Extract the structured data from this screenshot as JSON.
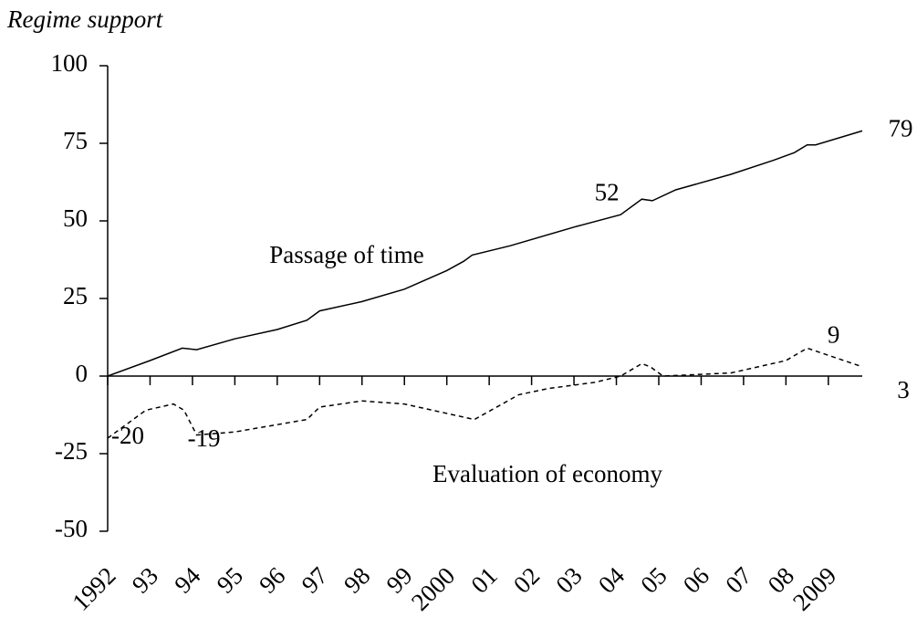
{
  "chart_data": {
    "type": "line",
    "y_label": "Regime support",
    "xlim": [
      1992,
      2009.8
    ],
    "ylim": [
      -50,
      100
    ],
    "yticks": [
      -50,
      -25,
      0,
      25,
      50,
      75,
      100
    ],
    "xticks": [
      1992,
      {
        "value": 1993,
        "label": "93"
      },
      {
        "value": 1994,
        "label": "94"
      },
      {
        "value": 1995,
        "label": "95"
      },
      {
        "value": 1996,
        "label": "96"
      },
      {
        "value": 1997,
        "label": "97"
      },
      {
        "value": 1998,
        "label": "98"
      },
      {
        "value": 1999,
        "label": "99"
      },
      2000,
      {
        "value": 2001,
        "label": "01"
      },
      {
        "value": 2002,
        "label": "02"
      },
      {
        "value": 2003,
        "label": "03"
      },
      {
        "value": 2004,
        "label": "04"
      },
      {
        "value": 2005,
        "label": "05"
      },
      {
        "value": 2006,
        "label": "06"
      },
      {
        "value": 2007,
        "label": "07"
      },
      {
        "value": 2008,
        "label": "08"
      },
      2009
    ],
    "series": [
      {
        "name": "Passage of time",
        "color": "#000000",
        "dashed": false,
        "x": [
          1992,
          1993,
          1993.76,
          1994.1,
          1995,
          1996,
          1996.7,
          1997,
          1998,
          1999,
          2000,
          2000.4,
          2000.6,
          2001.5,
          2003,
          2004.1,
          2004.6,
          2004.85,
          2005.4,
          2006.7,
          2007.7,
          2008.2,
          2008.5,
          2008.7,
          2009.8
        ],
        "values": [
          0,
          5,
          9,
          8.5,
          12,
          15,
          18,
          21,
          24,
          28,
          34,
          37,
          39,
          42,
          48,
          52,
          57,
          56.5,
          60,
          65,
          69.5,
          72,
          74.5,
          74.5,
          79
        ],
        "value_labels": [
          null,
          null,
          null,
          null,
          null,
          null,
          null,
          null,
          null,
          null,
          null,
          null,
          null,
          null,
          null,
          "52",
          null,
          null,
          null,
          null,
          null,
          null,
          null,
          null,
          "79"
        ]
      },
      {
        "name": "Evaluation of economy",
        "color": "#000000",
        "dashed": true,
        "x": [
          1992,
          1992.9,
          1993.55,
          1993.8,
          1994.1,
          1995,
          1996.7,
          1997,
          1998,
          1999,
          2000.65,
          2001.7,
          2002.4,
          2003.5,
          2004.1,
          2004.6,
          2004.8,
          2005.1,
          2006.7,
          2008,
          2008.5,
          2009.8
        ],
        "values": [
          -20,
          -11,
          -9,
          -11,
          -19,
          -18,
          -14,
          -10,
          -8,
          -9,
          -14,
          -6,
          -4,
          -2,
          0,
          4,
          3,
          0,
          1,
          5,
          9,
          3
        ],
        "value_labels": [
          "-20",
          null,
          null,
          null,
          "-19",
          null,
          null,
          null,
          null,
          null,
          null,
          null,
          null,
          null,
          null,
          null,
          null,
          null,
          null,
          null,
          "9",
          "3"
        ]
      }
    ]
  }
}
